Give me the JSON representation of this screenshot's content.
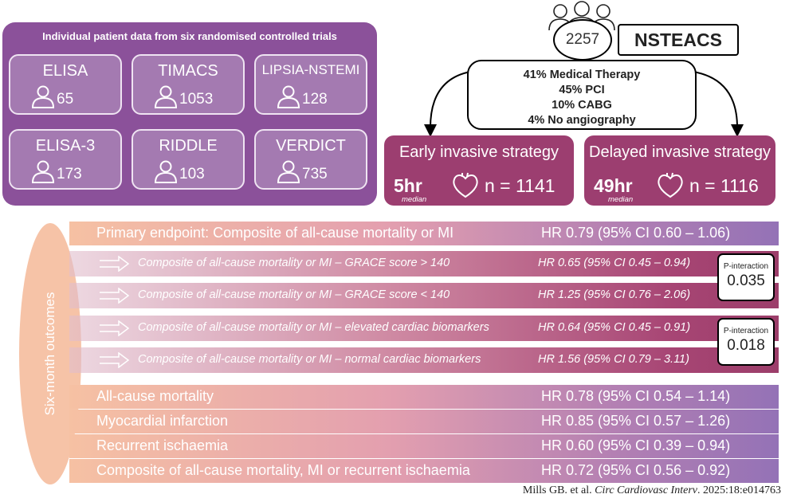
{
  "trials": {
    "title": "Individual patient data from six randomised controlled trials",
    "items": [
      {
        "name": "ELISA",
        "n": "65"
      },
      {
        "name": "TIMACS",
        "n": "1053"
      },
      {
        "name": "LIPSIA-NSTEMI",
        "n": "128"
      },
      {
        "name": "ELISA-3",
        "n": "173"
      },
      {
        "name": "RIDDLE",
        "n": "103"
      },
      {
        "name": "VERDICT",
        "n": "735"
      }
    ]
  },
  "flow": {
    "total": "2257",
    "condition": "NSTEACS",
    "treatments": [
      "41% Medical Therapy",
      "45% PCI",
      "10% CABG",
      "4% No angiography"
    ]
  },
  "strategies": [
    {
      "title": "Early invasive strategy",
      "time": "5hr",
      "median": "median",
      "n": "n = 1141"
    },
    {
      "title": "Delayed invasive strategy",
      "time": "49hr",
      "median": "median",
      "n": "n = 1116"
    }
  ],
  "outcomes": {
    "side_label": "Six-month outcomes",
    "primary": {
      "label": "Primary endpoint: Composite of all-cause mortality or MI",
      "hr": "HR 0.79 (95% CI 0.60 – 1.06)"
    },
    "subgroups": [
      {
        "label": "Composite of all-cause mortality or MI – GRACE score > 140",
        "hr": "HR 0.65 (95% CI 0.45 – 0.94)"
      },
      {
        "label": "Composite of all-cause mortality or MI – GRACE score < 140",
        "hr": "HR 1.25 (95% CI 0.76 – 2.06)"
      },
      {
        "label": "Composite of all-cause mortality or MI – elevated cardiac biomarkers",
        "hr": "HR 0.64 (95% CI 0.45 – 0.91)"
      },
      {
        "label": "Composite of all-cause mortality or MI – normal cardiac biomarkers",
        "hr": "HR 1.56 (95% CI 0.79 – 3.11)"
      }
    ],
    "interactions": [
      {
        "label": "P-interaction",
        "value": "0.035"
      },
      {
        "label": "P-interaction",
        "value": "0.018"
      }
    ],
    "secondary": [
      {
        "label": "All-cause mortality",
        "hr": "HR 0.78 (95% CI 0.54 – 1.14)"
      },
      {
        "label": "Myocardial infarction",
        "hr": "HR 0.85 (95% CI 0.57 – 1.26)"
      },
      {
        "label": "Recurrent ischaemia",
        "hr": "HR 0.60 (95% CI 0.39 – 0.94)"
      },
      {
        "label": "Composite of all-cause mortality, MI or recurrent ischaemia",
        "hr": "HR 0.72 (95% CI 0.56 – 0.92)"
      }
    ]
  },
  "citation": {
    "authors": "Mills GB. et al.",
    "journal": "Circ Cardiovasc Interv",
    "ref": ". 2025:18:e014763"
  },
  "colors": {
    "panel": "#8b519a",
    "strategy": "#9c3e70",
    "oval": "#f6c3a7"
  },
  "icons": [
    "person-icon",
    "people-group-icon",
    "heart-icon",
    "arrow-outline-icon"
  ]
}
